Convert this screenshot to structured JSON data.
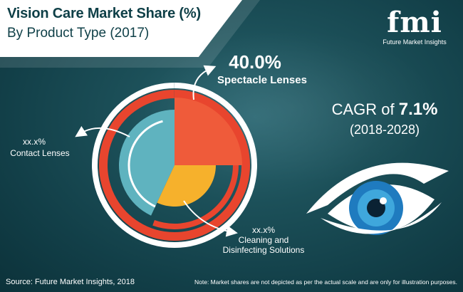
{
  "header": {
    "title": "Vision Care Market Share (%)",
    "subtitle": "By Product Type (2017)"
  },
  "logo": {
    "mark": "fmi",
    "name": "Future Market Insights"
  },
  "cagr": {
    "prefix": "CAGR of ",
    "value": "7.1%",
    "years": "(2018-2028)"
  },
  "footer": {
    "source": "Source: Future Market Insights, 2018",
    "note": "Note: Market shares are not depicted as per the actual scale and are only for illustration purposes."
  },
  "colors": {
    "spectacle": "#ef5b3a",
    "contact": "#5fb3bf",
    "cleaning": "#f6b12c",
    "ring_outer": "#e8452e",
    "ring_white": "#ffffff"
  },
  "chart_data": {
    "type": "pie",
    "title": "Vision Care Market Share (%)",
    "subtitle": "By Product Type (2017)",
    "segments": [
      {
        "name": "Spectacle Lenses",
        "label": "40.0%",
        "value": 40.0
      },
      {
        "name": "Contact Lenses",
        "label": "xx.x%",
        "value": null
      },
      {
        "name": "Cleaning and Disinfecting Solutions",
        "label": "xx.x%",
        "value": null
      }
    ]
  },
  "labels": {
    "spectacle_value": "40.0%",
    "spectacle_name": "Spectacle Lenses",
    "contact_value": "xx.x%",
    "contact_name": "Contact Lenses",
    "cleaning_value": "xx.x%",
    "cleaning_name_1": "Cleaning and",
    "cleaning_name_2": "Disinfecting Solutions"
  }
}
